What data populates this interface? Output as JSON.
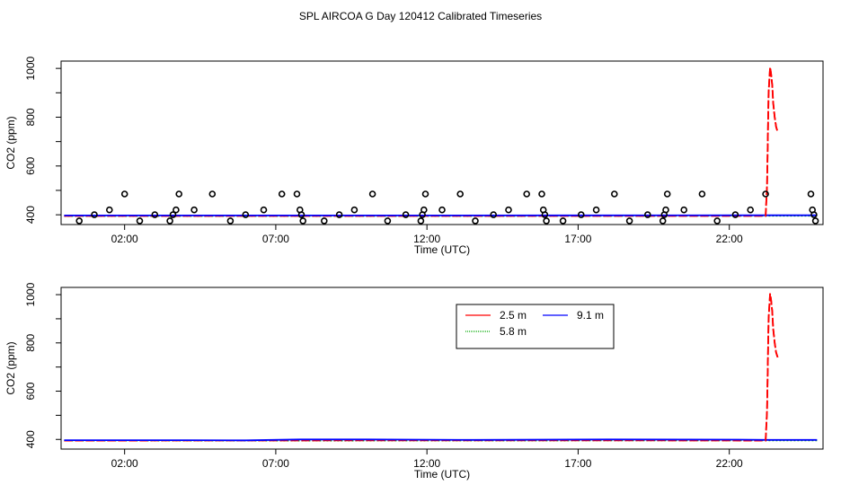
{
  "title": "SPL AIRCOA G  Day 120412  Calibrated Timeseries",
  "colors": {
    "series_2_5": "#ff0000",
    "series_5_8": "#00aa00",
    "series_9_1": "#0000ff",
    "points": "#000000"
  },
  "chart_data": [
    {
      "type": "line",
      "xlabel": "Time (UTC)",
      "ylabel": "CO2 (ppm)",
      "xlim": [
        -0.1,
        25.1
      ],
      "ylim": [
        360,
        1030
      ],
      "x_ticks": [
        2,
        7,
        12,
        17,
        22
      ],
      "x_tick_labels": [
        "02:00",
        "07:00",
        "12:00",
        "17:00",
        "22:00"
      ],
      "y_ticks": [
        400,
        600,
        800,
        1000
      ],
      "y_tick_labels": [
        "400",
        "600",
        "800",
        "1000"
      ],
      "series": [
        {
          "key": "s25",
          "x": [
            0,
            12,
            23.2,
            23.25,
            23.3,
            23.35,
            23.38,
            23.42,
            23.45,
            23.5,
            23.55,
            23.6
          ],
          "y": [
            395,
            395,
            395,
            520,
            900,
            1005,
            980,
            930,
            860,
            800,
            760,
            740
          ]
        },
        {
          "key": "s58",
          "x": [
            0,
            12,
            23.2,
            24.9
          ],
          "y": [
            395,
            395,
            396,
            396
          ]
        },
        {
          "key": "s91",
          "x": [
            0,
            12,
            23.2,
            24.9
          ],
          "y": [
            397,
            397,
            398,
            398
          ]
        }
      ],
      "points": {
        "x": [
          0.5,
          1,
          1.5,
          2,
          2.5,
          3,
          3.5,
          3.6,
          3.7,
          3.8,
          4.3,
          4.9,
          5.5,
          6,
          6.6,
          7.2,
          7.7,
          7.8,
          7.85,
          7.9,
          8.6,
          9.1,
          9.6,
          10.2,
          10.7,
          11.3,
          11.8,
          11.85,
          11.9,
          11.95,
          12.5,
          13.1,
          13.6,
          14.2,
          14.7,
          15.3,
          15.8,
          15.85,
          15.9,
          15.95,
          16.5,
          17.1,
          17.6,
          18.2,
          18.7,
          19.3,
          19.8,
          19.85,
          19.9,
          19.95,
          20.5,
          21.1,
          21.6,
          22.2,
          22.7,
          23.2,
          24.7,
          24.75,
          24.8,
          24.85
        ],
        "y": [
          375,
          400,
          420,
          485,
          375,
          400,
          375,
          400,
          420,
          485,
          420,
          485,
          375,
          400,
          420,
          485,
          485,
          420,
          400,
          375,
          375,
          400,
          420,
          485,
          375,
          400,
          375,
          400,
          420,
          485,
          420,
          485,
          375,
          400,
          420,
          485,
          485,
          420,
          400,
          375,
          375,
          400,
          420,
          485,
          375,
          400,
          375,
          400,
          420,
          485,
          420,
          485,
          375,
          400,
          420,
          485,
          485,
          420,
          400,
          375
        ]
      }
    },
    {
      "type": "line",
      "xlabel": "Time (UTC)",
      "ylabel": "CO2 (ppm)",
      "xlim": [
        -0.1,
        25.1
      ],
      "ylim": [
        360,
        1030
      ],
      "x_ticks": [
        2,
        7,
        12,
        17,
        22
      ],
      "x_tick_labels": [
        "02:00",
        "07:00",
        "12:00",
        "17:00",
        "22:00"
      ],
      "y_ticks": [
        400,
        600,
        800,
        1000
      ],
      "y_tick_labels": [
        "400",
        "600",
        "800",
        "1000"
      ],
      "legend": {
        "placement": "top-center",
        "entries": [
          {
            "key": "s25",
            "label": "2.5 m"
          },
          {
            "key": "s58",
            "label": "5.8 m"
          },
          {
            "key": "s91",
            "label": "9.1 m"
          }
        ]
      },
      "series": [
        {
          "key": "s25",
          "x": [
            0,
            13.6,
            18,
            23.2,
            23.25,
            23.3,
            23.35,
            23.38,
            23.42,
            23.45,
            23.5,
            23.55,
            23.6
          ],
          "y": [
            395,
            396,
            396,
            395,
            520,
            900,
            1005,
            980,
            930,
            860,
            800,
            760,
            740
          ]
        },
        {
          "key": "s58",
          "x": [
            0,
            4,
            6,
            23.2,
            24.9
          ],
          "y": [
            395,
            395,
            395,
            396,
            396
          ]
        },
        {
          "key": "s91",
          "x": [
            0,
            2,
            4,
            6,
            7.8,
            10,
            13.6,
            18,
            22.3,
            23.2,
            24.9
          ],
          "y": [
            397,
            397,
            397,
            396,
            400,
            400,
            398,
            400,
            399,
            398,
            398
          ]
        }
      ]
    }
  ]
}
